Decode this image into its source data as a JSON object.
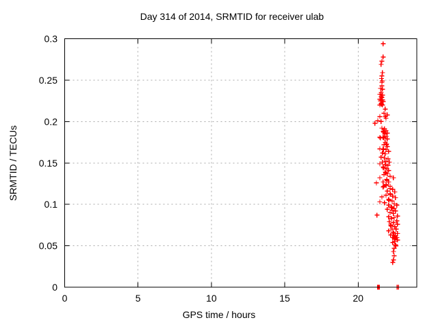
{
  "chart_data": {
    "type": "scatter",
    "title": "Day 314 of 2014, SRMTID for receiver ulab",
    "xlabel": "GPS time / hours",
    "ylabel": "SRMTID / TECUs",
    "xlim": [
      0,
      24
    ],
    "ylim": [
      0,
      0.3
    ],
    "xticks": [
      {
        "v": 0,
        "label": "0"
      },
      {
        "v": 5,
        "label": "5"
      },
      {
        "v": 10,
        "label": "10"
      },
      {
        "v": 15,
        "label": "15"
      },
      {
        "v": 20,
        "label": "20"
      }
    ],
    "yticks": [
      {
        "v": 0.0,
        "label": "0"
      },
      {
        "v": 0.05,
        "label": "0.05"
      },
      {
        "v": 0.1,
        "label": "0.1"
      },
      {
        "v": 0.15,
        "label": "0.15"
      },
      {
        "v": 0.2,
        "label": "0.2"
      },
      {
        "v": 0.25,
        "label": "0.25"
      },
      {
        "v": 0.3,
        "label": "0.3"
      }
    ],
    "grid": true,
    "legend_position": "none",
    "marker": "plus",
    "marker_color": "#ff0000",
    "grid_color": "#a8a8a8",
    "axis_color": "#000000",
    "background_color": "#ffffff",
    "series": [
      {
        "name": "SRMTID",
        "points": [
          [
            21.71,
            0.294
          ],
          [
            21.71,
            0.278
          ],
          [
            21.62,
            0.273
          ],
          [
            21.57,
            0.269
          ],
          [
            21.66,
            0.259
          ],
          [
            21.62,
            0.255
          ],
          [
            21.6,
            0.252
          ],
          [
            21.64,
            0.249
          ],
          [
            21.62,
            0.247
          ],
          [
            21.62,
            0.243
          ],
          [
            21.53,
            0.24
          ],
          [
            21.66,
            0.239
          ],
          [
            21.57,
            0.235
          ],
          [
            21.48,
            0.233
          ],
          [
            21.66,
            0.232
          ],
          [
            21.57,
            0.23
          ],
          [
            21.62,
            0.229
          ],
          [
            21.48,
            0.227
          ],
          [
            21.66,
            0.226
          ],
          [
            21.53,
            0.225
          ],
          [
            21.71,
            0.224
          ],
          [
            21.57,
            0.222
          ],
          [
            21.59,
            0.221
          ],
          [
            21.48,
            0.22
          ],
          [
            21.66,
            0.22
          ],
          [
            21.85,
            0.215
          ],
          [
            21.76,
            0.21
          ],
          [
            21.99,
            0.208
          ],
          [
            21.85,
            0.206
          ],
          [
            21.48,
            0.206
          ],
          [
            21.9,
            0.204
          ],
          [
            21.34,
            0.201
          ],
          [
            21.57,
            0.2
          ],
          [
            21.15,
            0.198
          ],
          [
            21.62,
            0.192
          ],
          [
            21.8,
            0.191
          ],
          [
            21.9,
            0.189
          ],
          [
            21.71,
            0.188
          ],
          [
            21.73,
            0.187
          ],
          [
            21.99,
            0.186
          ],
          [
            21.8,
            0.185
          ],
          [
            21.9,
            0.182
          ],
          [
            21.71,
            0.181
          ],
          [
            21.48,
            0.181
          ],
          [
            21.53,
            0.18
          ],
          [
            21.76,
            0.18
          ],
          [
            21.99,
            0.179
          ],
          [
            21.85,
            0.175
          ],
          [
            21.95,
            0.173
          ],
          [
            21.93,
            0.172
          ],
          [
            21.76,
            0.172
          ],
          [
            21.99,
            0.17
          ],
          [
            21.48,
            0.167
          ],
          [
            21.71,
            0.167
          ],
          [
            21.73,
            0.166
          ],
          [
            21.9,
            0.166
          ],
          [
            22.08,
            0.164
          ],
          [
            21.66,
            0.162
          ],
          [
            21.85,
            0.161
          ],
          [
            21.57,
            0.157
          ],
          [
            21.8,
            0.156
          ],
          [
            22.04,
            0.155
          ],
          [
            21.9,
            0.152
          ],
          [
            21.66,
            0.151
          ],
          [
            22.13,
            0.151
          ],
          [
            21.48,
            0.149
          ],
          [
            21.85,
            0.148
          ],
          [
            22.04,
            0.147
          ],
          [
            21.71,
            0.145
          ],
          [
            21.73,
            0.144
          ],
          [
            21.95,
            0.143
          ],
          [
            22.08,
            0.141
          ],
          [
            21.85,
            0.139
          ],
          [
            21.87,
            0.138
          ],
          [
            21.99,
            0.137
          ],
          [
            21.76,
            0.136
          ],
          [
            22.18,
            0.134
          ],
          [
            21.48,
            0.132
          ],
          [
            22.41,
            0.132
          ],
          [
            21.95,
            0.13
          ],
          [
            21.97,
            0.129
          ],
          [
            21.71,
            0.127
          ],
          [
            22.08,
            0.127
          ],
          [
            21.25,
            0.126
          ],
          [
            21.9,
            0.124
          ],
          [
            21.92,
            0.123
          ],
          [
            22.18,
            0.122
          ],
          [
            21.71,
            0.121
          ],
          [
            21.76,
            0.122
          ],
          [
            22.18,
            0.119
          ],
          [
            22.36,
            0.118
          ],
          [
            21.99,
            0.116
          ],
          [
            22.5,
            0.115
          ],
          [
            22.18,
            0.113
          ],
          [
            22.2,
            0.112
          ],
          [
            21.9,
            0.111
          ],
          [
            22.36,
            0.11
          ],
          [
            21.62,
            0.109
          ],
          [
            22.55,
            0.108
          ],
          [
            22.08,
            0.106
          ],
          [
            22.1,
            0.105
          ],
          [
            22.32,
            0.104
          ],
          [
            21.48,
            0.103
          ],
          [
            21.8,
            0.102
          ],
          [
            22.46,
            0.101
          ],
          [
            22.08,
            0.099
          ],
          [
            22.64,
            0.099
          ],
          [
            22.27,
            0.097
          ],
          [
            22.29,
            0.096
          ],
          [
            22.46,
            0.095
          ],
          [
            21.99,
            0.094
          ],
          [
            22.32,
            0.093
          ],
          [
            22.55,
            0.092
          ],
          [
            22.18,
            0.09
          ],
          [
            22.41,
            0.089
          ],
          [
            21.29,
            0.087
          ],
          [
            22.69,
            0.086
          ],
          [
            22.08,
            0.085
          ],
          [
            22.46,
            0.084
          ],
          [
            22.27,
            0.083
          ],
          [
            22.64,
            0.08
          ],
          [
            22.13,
            0.079
          ],
          [
            22.41,
            0.078
          ],
          [
            22.69,
            0.076
          ],
          [
            22.22,
            0.075
          ],
          [
            22.24,
            0.074
          ],
          [
            22.5,
            0.073
          ],
          [
            22.32,
            0.07
          ],
          [
            22.59,
            0.07
          ],
          [
            22.08,
            0.068
          ],
          [
            22.41,
            0.066
          ],
          [
            22.43,
            0.065
          ],
          [
            22.69,
            0.065
          ],
          [
            22.22,
            0.063
          ],
          [
            22.5,
            0.061
          ],
          [
            22.55,
            0.062
          ],
          [
            22.36,
            0.06
          ],
          [
            22.64,
            0.06
          ],
          [
            22.46,
            0.059
          ],
          [
            22.48,
            0.058
          ],
          [
            22.69,
            0.057
          ],
          [
            22.5,
            0.055
          ],
          [
            22.36,
            0.054
          ],
          [
            22.55,
            0.051
          ],
          [
            22.57,
            0.05
          ],
          [
            22.46,
            0.047
          ],
          [
            22.41,
            0.043
          ],
          [
            22.46,
            0.038
          ],
          [
            22.41,
            0.033
          ],
          [
            22.36,
            0.03
          ],
          [
            21.32,
            0.0
          ],
          [
            21.35,
            0.0
          ],
          [
            21.38,
            0.0
          ],
          [
            21.41,
            0.0
          ],
          [
            21.44,
            0.0
          ],
          [
            22.66,
            0.0
          ],
          [
            22.76,
            0.0
          ]
        ]
      }
    ]
  }
}
